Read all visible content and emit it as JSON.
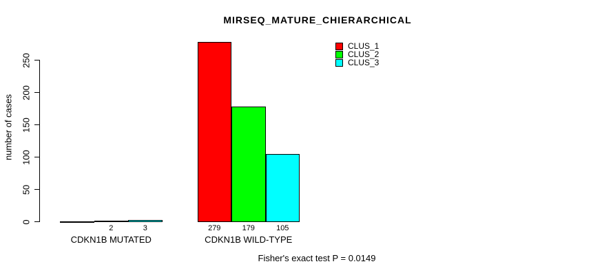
{
  "page": {
    "background": "#ffffff",
    "text_color": "#000000"
  },
  "chart_data": {
    "type": "bar",
    "title": "MIRSEQ_MATURE_CHIERARCHICAL",
    "xlabel": "",
    "ylabel": "number of cases",
    "ylim": [
      0,
      250
    ],
    "yticks": [
      0,
      50,
      100,
      150,
      200,
      250
    ],
    "grid": false,
    "bar_outline_color": "#000000",
    "categories": [
      "CDKN1B MUTATED",
      "CDKN1B WILD-TYPE"
    ],
    "series": [
      {
        "name": "CLUS_1",
        "color": "#ff0000",
        "values": [
          1,
          279
        ],
        "bar_labels": [
          "",
          "279"
        ]
      },
      {
        "name": "CLUS_2",
        "color": "#00ff00",
        "values": [
          2,
          179
        ],
        "bar_labels": [
          "2",
          "179"
        ]
      },
      {
        "name": "CLUS_3",
        "color": "#00ffff",
        "values": [
          3,
          105
        ],
        "bar_labels": [
          "3",
          "105"
        ]
      }
    ],
    "legend": {
      "position": "top-right",
      "entries": [
        "CLUS_1",
        "CLUS_2",
        "CLUS_3"
      ]
    },
    "annotation": "Fisher's exact test P = 0.0149"
  }
}
